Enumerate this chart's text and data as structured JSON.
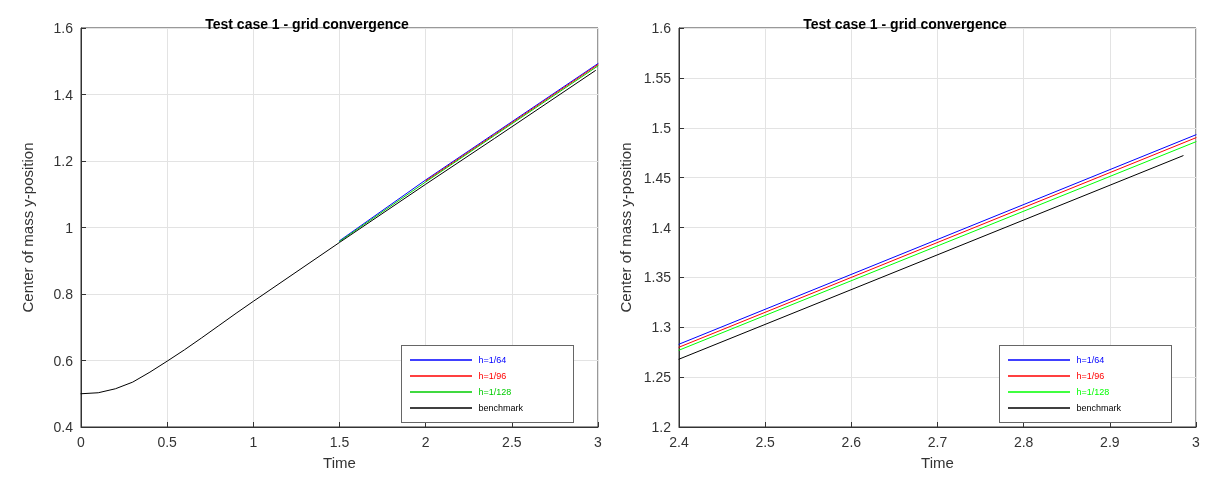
{
  "chart_data": [
    {
      "type": "line",
      "title": "Test case 1 - grid convergence",
      "xlabel": "Time",
      "ylabel": "Center of mass y-position",
      "xlim": [
        0,
        3
      ],
      "xticks": [
        0,
        0.5,
        1,
        1.5,
        2,
        2.5,
        3
      ],
      "ylim": [
        0.4,
        1.6
      ],
      "yticks": [
        0.4,
        0.6,
        0.8,
        1,
        1.2,
        1.4,
        1.6
      ],
      "grid": true,
      "legend": "bottom right",
      "line_style": "solid",
      "marker": "none",
      "series": [
        {
          "name": "h=1/64",
          "color": "#0000ff",
          "x": [
            1.5,
            2,
            2.4,
            3
          ],
          "values": [
            0.96,
            1.143,
            1.283,
            1.493
          ]
        },
        {
          "name": "h=1/96",
          "color": "#ff0000",
          "x": [
            2,
            2.4,
            3
          ],
          "values": [
            1.14,
            1.28,
            1.49
          ]
        },
        {
          "name": "h=1/128",
          "color": "#00cc00",
          "x": [
            1.5,
            2,
            2.4,
            3
          ],
          "values": [
            0.958,
            1.137,
            1.277,
            1.486
          ]
        },
        {
          "name": "benchmark",
          "color": "#000000",
          "x": [
            0,
            0.1,
            0.2,
            0.3,
            0.4,
            0.5,
            0.6,
            0.7,
            0.8,
            0.9,
            1,
            1.5,
            2,
            2.4,
            2.985
          ],
          "values": [
            0.5,
            0.503,
            0.515,
            0.535,
            0.565,
            0.598,
            0.632,
            0.668,
            0.705,
            0.742,
            0.778,
            0.955,
            1.13,
            1.268,
            1.472
          ]
        }
      ]
    },
    {
      "type": "line",
      "title": "Test case 1 - grid convergence",
      "xlabel": "Time",
      "ylabel": "Center of mass y-position",
      "xlim": [
        2.4,
        3
      ],
      "xticks": [
        2.4,
        2.5,
        2.6,
        2.7,
        2.8,
        2.9,
        3
      ],
      "ylim": [
        1.2,
        1.6
      ],
      "yticks": [
        1.2,
        1.25,
        1.3,
        1.35,
        1.4,
        1.45,
        1.5,
        1.55,
        1.6
      ],
      "grid": true,
      "legend": "bottom right",
      "line_style": "solid",
      "marker": "none",
      "series": [
        {
          "name": "h=1/64",
          "color": "#0000ff",
          "x": [
            2.4,
            3
          ],
          "values": [
            1.283,
            1.493
          ]
        },
        {
          "name": "h=1/96",
          "color": "#ff0000",
          "x": [
            2.4,
            3
          ],
          "values": [
            1.28,
            1.49
          ]
        },
        {
          "name": "h=1/128",
          "color": "#00ff00",
          "x": [
            2.4,
            3
          ],
          "values": [
            1.277,
            1.486
          ]
        },
        {
          "name": "benchmark",
          "color": "#000000",
          "x": [
            2.4,
            2.985
          ],
          "values": [
            1.268,
            1.472
          ]
        }
      ]
    }
  ]
}
